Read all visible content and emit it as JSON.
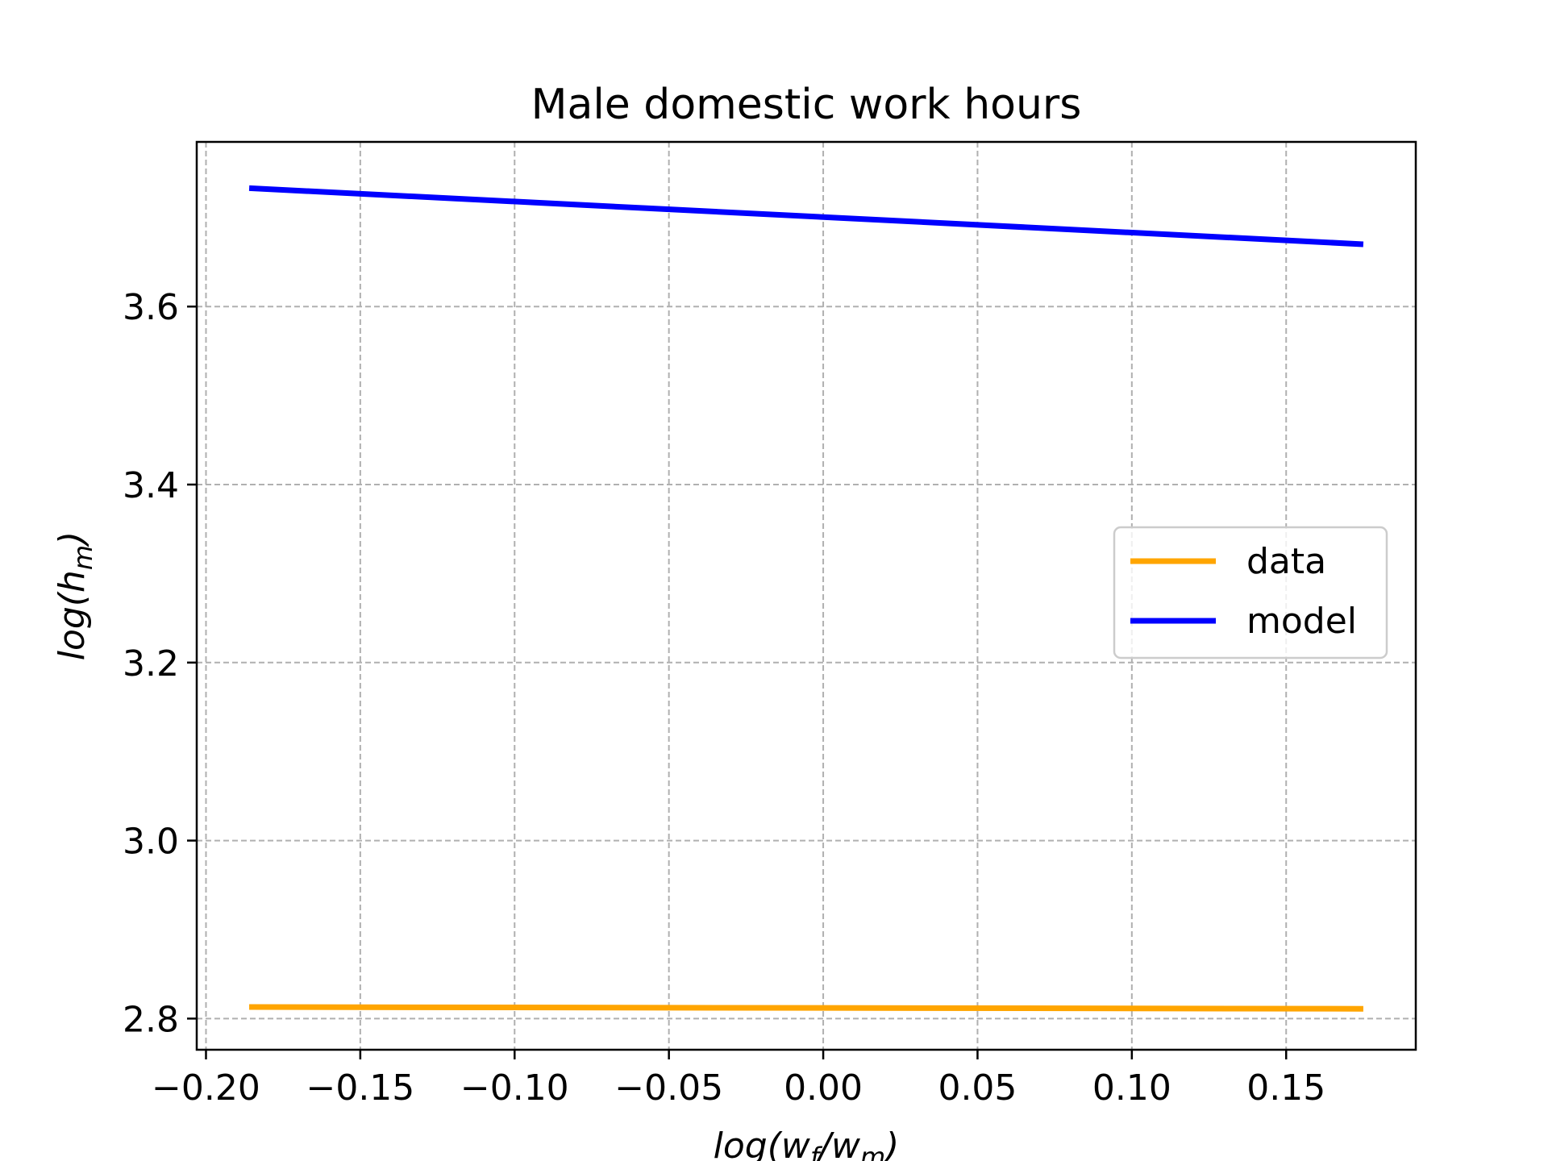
{
  "chart_data": {
    "type": "line",
    "title": "Male domestic work hours",
    "xlabel": "log(w_f/w_m)",
    "ylabel": "log(h_m)",
    "xlim": [
      -0.203,
      0.192
    ],
    "ylim": [
      2.765,
      3.785
    ],
    "x_ticks": [
      -0.2,
      -0.15,
      -0.1,
      -0.05,
      0.0,
      0.05,
      0.1,
      0.15
    ],
    "x_tick_labels": [
      "−0.20",
      "−0.15",
      "−0.10",
      "−0.05",
      "0.00",
      "0.05",
      "0.10",
      "0.15"
    ],
    "y_ticks": [
      2.8,
      3.0,
      3.2,
      3.4,
      3.6
    ],
    "y_tick_labels": [
      "2.8",
      "3.0",
      "3.2",
      "3.4",
      "3.6"
    ],
    "grid": true,
    "legend_position": "center-right",
    "series": [
      {
        "name": "data",
        "color": "#FFA500",
        "x": [
          -0.186,
          0.175
        ],
        "y": [
          2.813,
          2.811
        ]
      },
      {
        "name": "model",
        "color": "#0000FF",
        "x": [
          -0.186,
          0.175
        ],
        "y": [
          3.733,
          3.67
        ]
      }
    ]
  }
}
